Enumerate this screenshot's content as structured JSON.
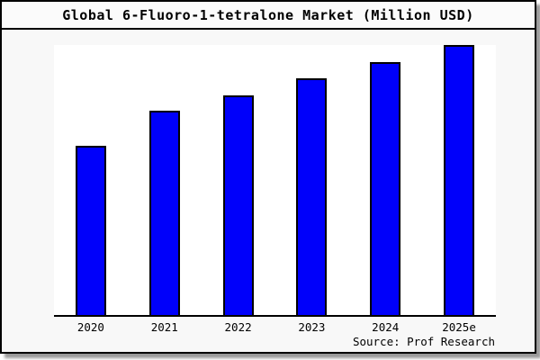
{
  "title": "Global 6-Fluoro-1-tetralone Market (Million USD)",
  "source_credit": "Source: Prof Research",
  "colors": {
    "bar_fill": "#0000fa",
    "bar_edge": "#000000",
    "figure_bg": "#f8f8f8",
    "plot_bg": "#ffffff",
    "border": "#000000",
    "shadow": "#9a9a9a",
    "text": "#000000"
  },
  "chart_data": {
    "type": "bar",
    "title": "Global 6-Fluoro-1-tetralone Market (Million USD)",
    "categories": [
      "2020",
      "2021",
      "2022",
      "2023",
      "2024",
      "2025e"
    ],
    "values": [
      62.8,
      75.5,
      81.3,
      87.6,
      93.8,
      100
    ],
    "units_note": "relative index estimated from bar heights; no y-axis labels shown; 2025e = 100",
    "xlabel": "",
    "ylabel": "",
    "ylim": [
      0,
      100
    ],
    "grid": false,
    "legend": null,
    "annotations": [
      "Source: Prof Research"
    ]
  }
}
